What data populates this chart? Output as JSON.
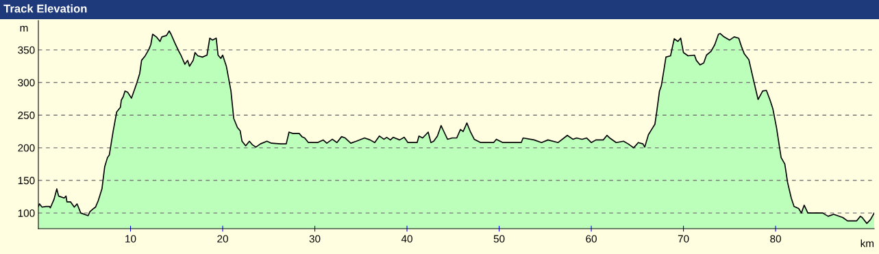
{
  "chart_data": {
    "type": "area",
    "title": "Track Elevation",
    "xlabel": "km",
    "ylabel": "m",
    "x": [
      0,
      0.12,
      0.4,
      0.8,
      1.2,
      1.3,
      1.7,
      2.0,
      2.2,
      2.8,
      3.0,
      3.1,
      3.5,
      3.9,
      4.2,
      4.6,
      5.4,
      5.6,
      6.0,
      6.2,
      6.5,
      6.9,
      7.2,
      7.5,
      7.7,
      8.1,
      8.5,
      8.9,
      9.0,
      9.2,
      9.4,
      9.7,
      10.1,
      10.5,
      10.7,
      11.0,
      11.2,
      11.6,
      12.0,
      12.2,
      12.4,
      12.8,
      13.2,
      13.4,
      13.9,
      14.2,
      14.4,
      14.8,
      15.2,
      15.5,
      15.9,
      16.2,
      16.4,
      16.8,
      17.0,
      17.3,
      17.8,
      18.3,
      18.6,
      18.9,
      19.3,
      19.5,
      19.8,
      20.0,
      20.4,
      20.9,
      21.2,
      21.6,
      21.9,
      22.1,
      22.5,
      22.9,
      23.2,
      23.6,
      24.1,
      24.8,
      25.3,
      26.3,
      26.9,
      27.2,
      27.6,
      28.3,
      28.6,
      28.9,
      29.3,
      30.3,
      30.9,
      31.3,
      31.9,
      32.4,
      32.9,
      33.3,
      33.9,
      34.5,
      35.4,
      36.0,
      36.5,
      37.0,
      37.5,
      37.8,
      38.2,
      38.5,
      39.2,
      39.7,
      40.1,
      41.1,
      41.3,
      41.7,
      42.3,
      42.6,
      42.9,
      43.3,
      43.7,
      44.0,
      44.4,
      44.9,
      45.4,
      45.8,
      46.1,
      46.5,
      46.9,
      47.3,
      48.0,
      49.4,
      49.7,
      50.4,
      52.4,
      52.6,
      53.8,
      54.6,
      55.3,
      56.4,
      57.4,
      58.0,
      58.4,
      59.0,
      59.5,
      60.0,
      60.5,
      61.3,
      61.7,
      62.0,
      62.7,
      63.5,
      64.0,
      64.6,
      65.1,
      65.6,
      65.8,
      66.2,
      66.5,
      66.9,
      67.1,
      67.4,
      67.6,
      67.9,
      68.1,
      68.6,
      69.0,
      69.4,
      69.7,
      70.0,
      70.5,
      71.2,
      71.4,
      71.8,
      72.2,
      72.5,
      73.0,
      73.4,
      73.8,
      74.0,
      74.4,
      75.0,
      75.5,
      76.0,
      76.3,
      76.6,
      77.1,
      77.6,
      78.1,
      78.6,
      79.0,
      79.4,
      79.7,
      80.1,
      80.4,
      80.6,
      81.0,
      81.3,
      81.7,
      82.0,
      82.5,
      82.8,
      83.1,
      83.5,
      84.1,
      85.1,
      85.7,
      86.3,
      87.3,
      87.8,
      88.8,
      89.2,
      89.4,
      89.9,
      90.3,
      90.7
    ],
    "series": [
      {
        "color": "#bbffbb",
        "values": [
          110,
          114,
          109,
          110,
          110,
          108,
          121,
          137,
          126,
          123,
          126,
          117,
          117,
          109,
          114,
          100,
          96,
          102,
          107,
          109,
          119,
          137,
          171,
          185,
          189,
          224,
          255,
          262,
          273,
          278,
          287,
          285,
          276,
          292,
          300,
          314,
          334,
          341,
          351,
          358,
          374,
          370,
          363,
          370,
          372,
          379,
          374,
          361,
          349,
          341,
          328,
          334,
          325,
          334,
          346,
          341,
          339,
          342,
          368,
          365,
          368,
          342,
          337,
          342,
          325,
          287,
          245,
          231,
          226,
          210,
          203,
          210,
          205,
          201,
          206,
          210,
          207,
          206,
          206,
          224,
          222,
          222,
          217,
          215,
          208,
          208,
          212,
          207,
          213,
          208,
          217,
          215,
          207,
          210,
          215,
          212,
          208,
          218,
          213,
          216,
          212,
          216,
          212,
          216,
          208,
          208,
          218,
          215,
          224,
          208,
          210,
          218,
          234,
          225,
          213,
          215,
          215,
          228,
          225,
          238,
          224,
          213,
          208,
          208,
          213,
          208,
          208,
          215,
          212,
          208,
          212,
          208,
          219,
          213,
          215,
          213,
          215,
          208,
          212,
          212,
          219,
          215,
          208,
          210,
          206,
          200,
          208,
          206,
          201,
          220,
          227,
          236,
          255,
          287,
          295,
          321,
          339,
          341,
          367,
          363,
          368,
          346,
          341,
          342,
          334,
          327,
          330,
          342,
          348,
          358,
          374,
          375,
          370,
          365,
          370,
          368,
          355,
          344,
          335,
          304,
          274,
          287,
          288,
          273,
          260,
          231,
          203,
          185,
          175,
          147,
          123,
          110,
          107,
          100,
          112,
          100,
          100,
          100,
          95,
          98,
          93,
          88,
          88,
          95,
          93,
          84,
          90,
          100
        ]
      }
    ],
    "xlim": [
      0,
      90.7
    ],
    "ylim": [
      76,
      395
    ],
    "xticks": [
      10,
      20,
      30,
      40,
      50,
      60,
      70,
      80
    ],
    "yticks": [
      100,
      150,
      200,
      250,
      300,
      350
    ],
    "grid": "y",
    "line_style": "solid"
  }
}
